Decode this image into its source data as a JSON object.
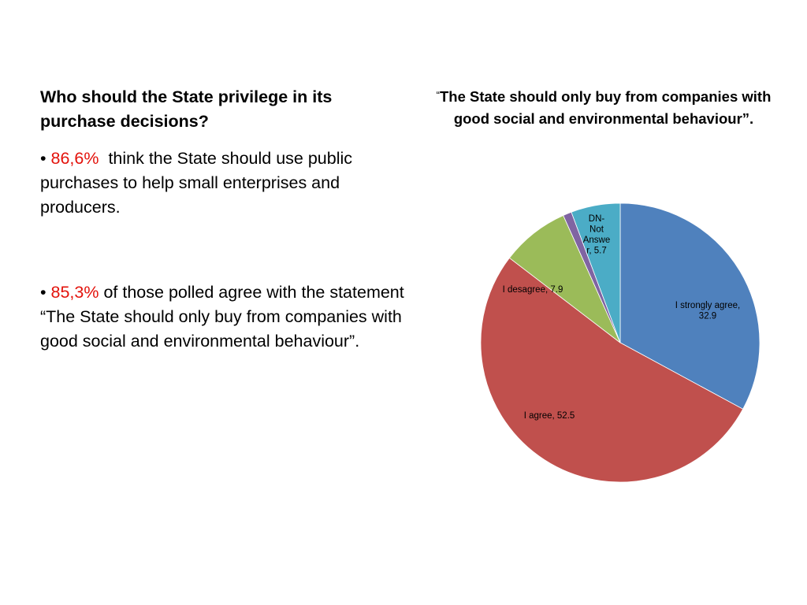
{
  "left": {
    "question": "Who should the State privilege in its purchase decisions?",
    "bullets": [
      {
        "marker": "•",
        "highlight": "86,6%",
        "text": "think the State should use public purchases to help small enterprises and producers."
      },
      {
        "marker": "•",
        "highlight": "85,3%",
        "text": "of those polled agree with the statement “The State should only buy from companies with good social and environmental behaviour”."
      }
    ]
  },
  "chart_data": {
    "type": "pie",
    "title_prefix": "“",
    "title": "The State should only buy from companies with good social and environmental behaviour”.",
    "start_angle_deg": 0,
    "direction": "clockwise",
    "categories": [
      "I strongly agree",
      "I agree",
      "I desagree",
      "",
      "DN-Not Answer"
    ],
    "values": [
      32.9,
      52.5,
      7.9,
      1.0,
      5.7
    ],
    "colors": [
      "#4f81bd",
      "#c0504d",
      "#9bbb59",
      "#8064a2",
      "#4bacc6"
    ],
    "labels": [
      {
        "lines": [
          "I strongly agree,",
          "32.9"
        ]
      },
      {
        "lines": [
          "I agree, 52.5"
        ]
      },
      {
        "lines": [
          "I desagree, 7.9"
        ]
      },
      {
        "lines": []
      },
      {
        "lines": [
          "DN-",
          "Not",
          "Answe",
          "r, 5.7"
        ]
      }
    ]
  }
}
